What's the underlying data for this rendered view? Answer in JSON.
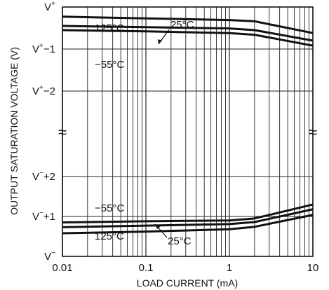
{
  "chart_data": {
    "type": "line",
    "title": "",
    "xlabel": "LOAD CURRENT (mA)",
    "ylabel": "OUTPUT SATURATION VOLTAGE (V)",
    "x_scale": "log",
    "xlim": [
      0.01,
      10
    ],
    "x_ticks": [
      {
        "value": 0.01,
        "label": "0.01"
      },
      {
        "value": 0.1,
        "label": "0.1"
      },
      {
        "value": 1,
        "label": "1"
      },
      {
        "value": 10,
        "label": "10"
      }
    ],
    "y_ticks": [
      {
        "key": "v_plus",
        "base": "V",
        "sup": "+",
        "offset": ""
      },
      {
        "key": "v_plus_minus_1",
        "base": "V",
        "sup": "+",
        "offset": "−1"
      },
      {
        "key": "v_plus_minus_2",
        "base": "V",
        "sup": "+",
        "offset": "−2"
      },
      {
        "key": "v_minus_plus_2",
        "base": "V",
        "sup": "−",
        "offset": "+2"
      },
      {
        "key": "v_minus_plus_1",
        "base": "V",
        "sup": "−",
        "offset": "+1"
      },
      {
        "key": "v_minus",
        "base": "V",
        "sup": "−",
        "offset": ""
      }
    ],
    "axis_break_symbol": "≈",
    "grid": true,
    "series": [
      {
        "name": "125°C",
        "rail": "V+",
        "y_unit": "V below V+",
        "x": [
          0.01,
          0.1,
          1,
          2,
          10
        ],
        "y": [
          0.23,
          0.27,
          0.31,
          0.34,
          0.62
        ]
      },
      {
        "name": "25°C",
        "rail": "V+",
        "y_unit": "V below V+",
        "x": [
          0.01,
          0.1,
          1,
          2,
          10
        ],
        "y": [
          0.45,
          0.48,
          0.51,
          0.55,
          0.8
        ]
      },
      {
        "name": "−55°C",
        "rail": "V+",
        "y_unit": "V below V+",
        "x": [
          0.01,
          0.1,
          1,
          2,
          10
        ],
        "y": [
          0.55,
          0.58,
          0.62,
          0.66,
          0.92
        ]
      },
      {
        "name": "−55°C",
        "rail": "V−",
        "y_unit": "V above V−",
        "x": [
          0.01,
          0.1,
          1,
          2,
          10
        ],
        "y": [
          0.85,
          0.88,
          0.9,
          0.95,
          1.3
        ]
      },
      {
        "name": "25°C",
        "rail": "V−",
        "y_unit": "V above V−",
        "x": [
          0.01,
          0.1,
          1,
          2,
          10
        ],
        "y": [
          0.73,
          0.77,
          0.81,
          0.86,
          1.18
        ]
      },
      {
        "name": "125°C",
        "rail": "V−",
        "y_unit": "V above V−",
        "x": [
          0.01,
          0.1,
          1,
          2,
          10
        ],
        "y": [
          0.58,
          0.62,
          0.68,
          0.74,
          1.04
        ]
      }
    ]
  }
}
